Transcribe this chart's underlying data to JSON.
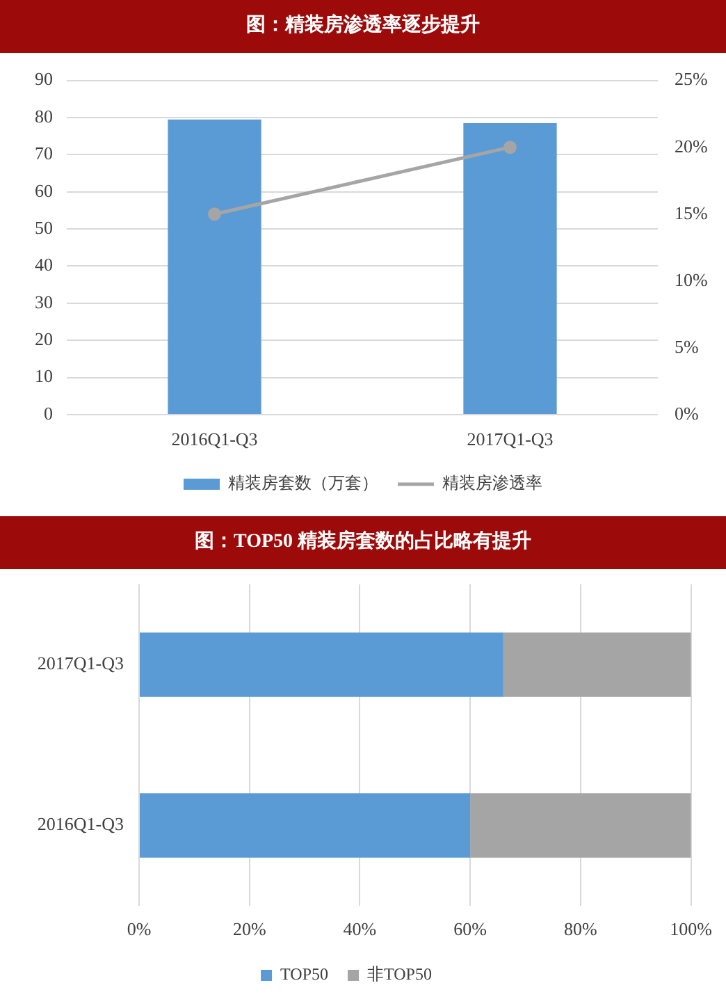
{
  "chart_data": [
    {
      "type": "bar",
      "title": "图：精装房渗透率逐步提升",
      "categories": [
        "2016Q1-Q3",
        "2017Q1-Q3"
      ],
      "series": [
        {
          "name": "精装房套数（万套）",
          "color": "#5b9bd5",
          "values": [
            79.5,
            78.5
          ]
        },
        {
          "name": "精装房渗透率",
          "type": "line",
          "axis": "y2",
          "color": "#a5a5a5",
          "values": [
            15,
            20
          ]
        }
      ],
      "ylim": [
        0,
        90
      ],
      "yticks": [
        0,
        10,
        20,
        30,
        40,
        50,
        60,
        70,
        80,
        90
      ],
      "y2lim": [
        0,
        25
      ],
      "y2ticks": [
        {
          "value": 0,
          "label": "0%"
        },
        {
          "value": 5,
          "label": "5%"
        },
        {
          "value": 10,
          "label": "10%"
        },
        {
          "value": 15,
          "label": "15%"
        },
        {
          "value": 20,
          "label": "20%"
        },
        {
          "value": 25,
          "label": "25%"
        }
      ],
      "grid": "y",
      "legend": "bottom",
      "marker": "circle"
    },
    {
      "type": "bar",
      "title": "图：TOP50 精装房套数的占比略有提升",
      "orientation": "horizontal",
      "stacked": true,
      "categories": [
        "2017Q1-Q3",
        "2016Q1-Q3"
      ],
      "series": [
        {
          "name": "TOP50",
          "color": "#5b9bd5",
          "values": [
            66,
            60
          ]
        },
        {
          "name": "非TOP50",
          "color": "#a5a5a5",
          "values": [
            34,
            40
          ]
        }
      ],
      "xlim": [
        0,
        100
      ],
      "xticks": [
        {
          "value": 0,
          "label": "0%"
        },
        {
          "value": 20,
          "label": "20%"
        },
        {
          "value": 40,
          "label": "40%"
        },
        {
          "value": 60,
          "label": "60%"
        },
        {
          "value": 80,
          "label": "80%"
        },
        {
          "value": 100,
          "label": "100%"
        }
      ],
      "grid": "x",
      "legend": "bottom"
    }
  ]
}
